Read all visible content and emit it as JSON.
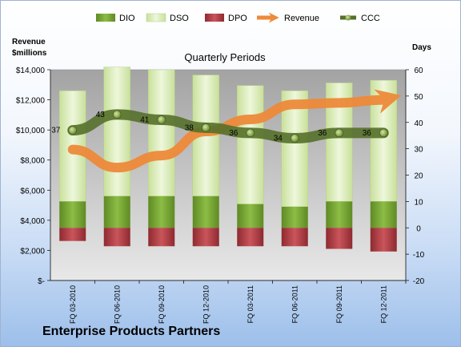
{
  "chart_data": {
    "type": "bar",
    "title": "Quarterly Periods",
    "footer": "Enterprise Products Partners",
    "y_left_label": [
      "Revenue",
      "$millions"
    ],
    "y_right_label": "Days",
    "y_left_range": [
      0,
      14000
    ],
    "y_left_ticks": [
      "$-",
      "$2,000",
      "$4,000",
      "$6,000",
      "$8,000",
      "$10,000",
      "$12,000",
      "$14,000"
    ],
    "y_right_range": [
      -20,
      60
    ],
    "y_right_ticks": [
      "-20",
      "-10",
      "0",
      "10",
      "20",
      "30",
      "40",
      "50",
      "60"
    ],
    "categories": [
      "FQ 03-2010",
      "FQ 06-2010",
      "FQ 09-2010",
      "FQ 12-2010",
      "FQ 03-2011",
      "FQ 06-2011",
      "FQ 09-2011",
      "FQ 12-2011"
    ],
    "legend": [
      "DIO",
      "DSO",
      "DPO",
      "Revenue",
      "CCC"
    ],
    "colors": {
      "DIO": "#6e9a2c",
      "DSO": "#d9ebb5",
      "DPO": "#a8383e",
      "Revenue": "#ee8a3a",
      "CCC": "#55702a"
    },
    "series": [
      {
        "name": "DIO",
        "axis": "right",
        "values": [
          10,
          12,
          12,
          12,
          9,
          8,
          10,
          10
        ]
      },
      {
        "name": "DSO",
        "axis": "right",
        "values": [
          42,
          49,
          48,
          46,
          45,
          44,
          45,
          46
        ]
      },
      {
        "name": "DPO",
        "axis": "right",
        "values": [
          -5,
          -7,
          -7,
          -7,
          -7,
          -7,
          -8,
          -9
        ]
      },
      {
        "name": "Revenue",
        "axis": "left",
        "values": [
          8700,
          7500,
          8300,
          9900,
          10700,
          11700,
          11800,
          12000
        ]
      },
      {
        "name": "CCC",
        "axis": "right",
        "values": [
          37,
          43,
          41,
          38,
          36,
          34,
          36,
          36
        ],
        "labels": [
          "37",
          "43",
          "41",
          "38",
          "36",
          "34",
          "36",
          "36"
        ]
      }
    ],
    "grid": false,
    "legend_position": "top"
  }
}
